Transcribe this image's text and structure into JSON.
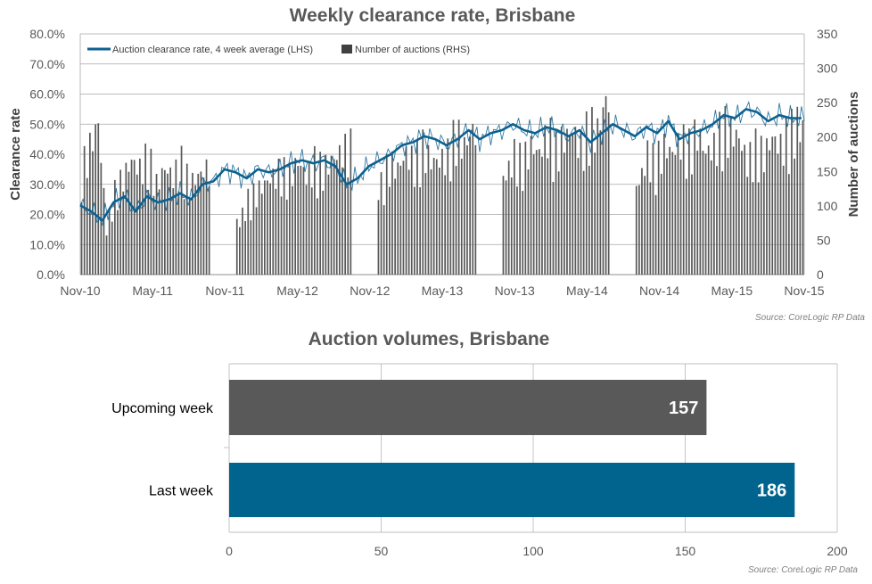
{
  "colors": {
    "line": "#0d6190",
    "bars_top": "#595959",
    "bar_upcoming": "#595959",
    "bar_last": "#00648f",
    "grid": "#a6a6a6",
    "title": "#595959"
  },
  "chart_data": [
    {
      "type": "line+bar",
      "title": "Weekly clearance rate, Brisbane",
      "ylabel": "Clearance rate",
      "y2label": "Number of auctions",
      "x_ticks": [
        "Nov-10",
        "May-11",
        "Nov-11",
        "May-12",
        "Nov-12",
        "May-13",
        "Nov-13",
        "May-14",
        "Nov-14",
        "May-15",
        "Nov-15"
      ],
      "y_ticks": [
        "0.0%",
        "10.0%",
        "20.0%",
        "30.0%",
        "40.0%",
        "50.0%",
        "60.0%",
        "70.0%",
        "80.0%"
      ],
      "y2_ticks": [
        "0",
        "50",
        "100",
        "150",
        "200",
        "250",
        "300",
        "350"
      ],
      "ylim": [
        0,
        0.8
      ],
      "y2lim": [
        0,
        350
      ],
      "grid": true,
      "legend_position": "top-left",
      "series": [
        {
          "name": "Auction clearance rate, 4 week average (LHS)",
          "kind": "line",
          "axis": "left",
          "anchors_x_week": [
            0,
            4,
            8,
            12,
            16,
            20,
            24,
            28,
            32,
            36,
            40,
            44,
            48,
            52,
            56,
            60,
            64,
            68,
            72,
            76,
            80,
            84,
            88,
            92,
            96,
            100,
            104,
            108,
            112,
            116,
            120,
            124,
            128,
            132,
            136,
            140,
            144,
            148,
            152,
            156,
            160,
            164,
            168,
            172,
            176,
            180,
            184,
            188,
            192,
            196,
            200,
            204,
            208,
            212,
            216,
            220,
            224,
            228,
            232,
            236,
            240,
            244,
            248,
            252,
            256,
            260
          ],
          "values": [
            0.23,
            0.21,
            0.18,
            0.24,
            0.26,
            0.21,
            0.26,
            0.24,
            0.25,
            0.27,
            0.25,
            0.3,
            0.31,
            0.35,
            0.34,
            0.32,
            0.35,
            0.34,
            0.35,
            0.37,
            0.38,
            0.37,
            0.38,
            0.36,
            0.3,
            0.32,
            0.36,
            0.38,
            0.4,
            0.43,
            0.44,
            0.46,
            0.45,
            0.43,
            0.45,
            0.48,
            0.45,
            0.47,
            0.48,
            0.5,
            0.48,
            0.47,
            0.49,
            0.48,
            0.46,
            0.48,
            0.44,
            0.47,
            0.5,
            0.48,
            0.46,
            0.49,
            0.47,
            0.51,
            0.45,
            0.47,
            0.48,
            0.5,
            0.53,
            0.52,
            0.55,
            0.54,
            0.51,
            0.53,
            0.52,
            0.52
          ]
        },
        {
          "name": "Number of auctions (RHS)",
          "kind": "bar",
          "axis": "right",
          "anchors_x_week": [
            0,
            3,
            6,
            9,
            12,
            15,
            18,
            21,
            24,
            27,
            30,
            33,
            36,
            39,
            42,
            45,
            48,
            51,
            54,
            57,
            60,
            63,
            66,
            69,
            72,
            75,
            78,
            81,
            84,
            87,
            90,
            93,
            96,
            99,
            102,
            105,
            108,
            111,
            114,
            117,
            120,
            123,
            126,
            129,
            132,
            135,
            138,
            141,
            144,
            147,
            150,
            153,
            156,
            159,
            162,
            165,
            168,
            171,
            174,
            177,
            180,
            183,
            186,
            189,
            192,
            195,
            198,
            201,
            204,
            207,
            210,
            213,
            216,
            219,
            222,
            225,
            228,
            231,
            234,
            237,
            240,
            243,
            246,
            249,
            252,
            255,
            258,
            261
          ],
          "values": [
            140,
            170,
            200,
            60,
            110,
            130,
            150,
            140,
            160,
            120,
            140,
            130,
            150,
            120,
            130,
            140,
            0,
            0,
            0,
            70,
            100,
            110,
            120,
            130,
            140,
            130,
            150,
            130,
            150,
            140,
            150,
            160,
            170,
            0,
            0,
            0,
            120,
            150,
            140,
            160,
            150,
            170,
            150,
            150,
            160,
            190,
            170,
            190,
            0,
            0,
            0,
            130,
            160,
            150,
            170,
            160,
            190,
            170,
            180,
            190,
            170,
            200,
            190,
            230,
            0,
            0,
            0,
            120,
            160,
            150,
            170,
            160,
            180,
            170,
            190,
            160,
            170,
            200,
            190,
            180,
            150,
            170,
            160,
            180,
            170,
            190,
            200,
            190
          ]
        }
      ],
      "source": "Source: CoreLogic RP Data"
    },
    {
      "type": "bar",
      "orientation": "horizontal",
      "title": "Auction volumes, Brisbane",
      "categories": [
        "Upcoming week",
        "Last week"
      ],
      "values": [
        157,
        186
      ],
      "xlim": [
        0,
        200
      ],
      "x_ticks": [
        "0",
        "50",
        "100",
        "150",
        "200"
      ],
      "source": "Source: CoreLogic RP Data"
    }
  ]
}
